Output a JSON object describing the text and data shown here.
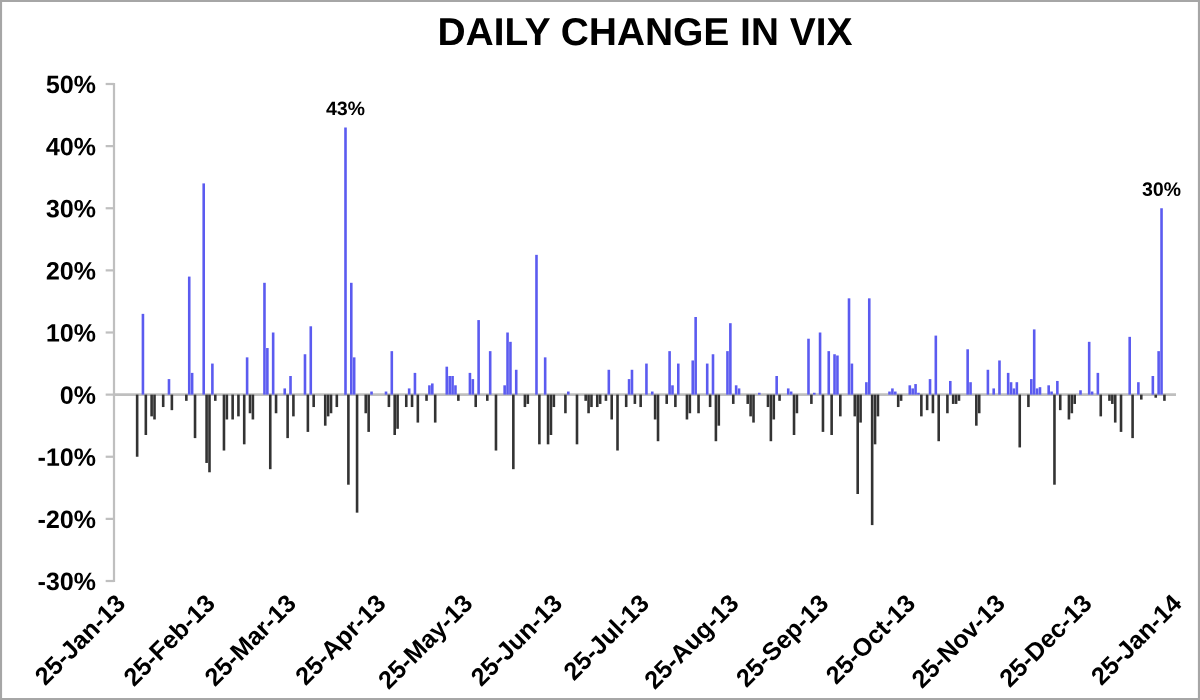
{
  "chart_data": {
    "type": "bar",
    "title": "DAILY CHANGE IN VIX",
    "xlim": [
      "2013-01-25",
      "2014-01-27"
    ],
    "xticks": [
      {
        "value": "2013-01-25",
        "label": "25-Jan-13"
      },
      {
        "value": "2013-02-25",
        "label": "25-Feb-13"
      },
      {
        "value": "2013-03-25",
        "label": "25-Mar-13"
      },
      {
        "value": "2013-04-25",
        "label": "25-Apr-13"
      },
      {
        "value": "2013-05-25",
        "label": "25-May-13"
      },
      {
        "value": "2013-06-25",
        "label": "25-Jun-13"
      },
      {
        "value": "2013-07-25",
        "label": "25-Jul-13"
      },
      {
        "value": "2013-08-25",
        "label": "25-Aug-13"
      },
      {
        "value": "2013-09-25",
        "label": "25-Sep-13"
      },
      {
        "value": "2013-10-25",
        "label": "25-Oct-13"
      },
      {
        "value": "2013-11-25",
        "label": "25-Nov-13"
      },
      {
        "value": "2013-12-25",
        "label": "25-Dec-13"
      },
      {
        "value": "2014-01-25",
        "label": "25-Jan-14"
      }
    ],
    "ylim": [
      -30,
      50
    ],
    "yticks": [
      {
        "value": -30,
        "label": "-30%"
      },
      {
        "value": -20,
        "label": "-20%"
      },
      {
        "value": -10,
        "label": "-10%"
      },
      {
        "value": 0,
        "label": "0%"
      },
      {
        "value": 10,
        "label": "10%"
      },
      {
        "value": 20,
        "label": "20%"
      },
      {
        "value": 30,
        "label": "30%"
      },
      {
        "value": 40,
        "label": "40%"
      },
      {
        "value": 50,
        "label": "50%"
      }
    ],
    "grid": false,
    "legend": false,
    "ref_lines": [
      {
        "axis": "y",
        "value": 0,
        "color": "#bfbfbf"
      }
    ],
    "annotations": [
      {
        "text": "43%",
        "x": "2013-04-15",
        "y": 43
      },
      {
        "text": "30%",
        "x": "2014-01-22",
        "y": 30
      }
    ],
    "series": [
      {
        "color": "#5b5bf0",
        "x": [
          "2013-02-04",
          "2013-02-13",
          "2013-02-20",
          "2013-02-21",
          "2013-02-25",
          "2013-02-28",
          "2013-03-12",
          "2013-03-18",
          "2013-03-19",
          "2013-03-21",
          "2013-03-25",
          "2013-03-27",
          "2013-04-01",
          "2013-04-03",
          "2013-04-15",
          "2013-04-17",
          "2013-04-18",
          "2013-04-24",
          "2013-04-29",
          "2013-05-01",
          "2013-05-07",
          "2013-05-09",
          "2013-05-14",
          "2013-05-15",
          "2013-05-20",
          "2013-05-21",
          "2013-05-22",
          "2013-05-23",
          "2013-05-28",
          "2013-05-29",
          "2013-05-31",
          "2013-06-04",
          "2013-06-09",
          "2013-06-10",
          "2013-06-11",
          "2013-06-13",
          "2013-06-20",
          "2013-06-23",
          "2013-07-01",
          "2013-07-15",
          "2013-07-22",
          "2013-07-23",
          "2013-07-28",
          "2013-07-30",
          "2013-08-05",
          "2013-08-06",
          "2013-08-08",
          "2013-08-13",
          "2013-08-14",
          "2013-08-18",
          "2013-08-20",
          "2013-08-25",
          "2013-08-26",
          "2013-08-28",
          "2013-08-29",
          "2013-09-05",
          "2013-09-11",
          "2013-09-15",
          "2013-09-16",
          "2013-09-22",
          "2013-09-24",
          "2013-09-26",
          "2013-09-29",
          "2013-10-01",
          "2013-10-02",
          "2013-10-06",
          "2013-10-07",
          "2013-10-12",
          "2013-10-13",
          "2013-10-20",
          "2013-10-21",
          "2013-10-22",
          "2013-10-27",
          "2013-10-28",
          "2013-10-29",
          "2013-10-30",
          "2013-11-03",
          "2013-11-05",
          "2013-11-10",
          "2013-11-16",
          "2013-11-17",
          "2013-11-23",
          "2013-11-25",
          "2013-11-27",
          "2013-11-30",
          "2013-12-01",
          "2013-12-02",
          "2013-12-03",
          "2013-12-08",
          "2013-12-09",
          "2013-12-10",
          "2013-12-11",
          "2013-12-14",
          "2013-12-15",
          "2013-12-17",
          "2013-12-25",
          "2013-12-28",
          "2013-12-29",
          "2013-12-31",
          "2014-01-11",
          "2014-01-14",
          "2014-01-19",
          "2014-01-21",
          "2014-01-22"
        ],
        "values": [
          13,
          2.5,
          19,
          3.5,
          34,
          5,
          6,
          18,
          7.5,
          10,
          1,
          3,
          6.5,
          11,
          43,
          18,
          6,
          0.5,
          0.5,
          7,
          1,
          3.5,
          1.5,
          1.8,
          4.5,
          3,
          3,
          1.5,
          3.5,
          2.5,
          12,
          7,
          1.5,
          10,
          8.5,
          4,
          22.5,
          6,
          0.5,
          4,
          2.5,
          4,
          5,
          0.5,
          7,
          1.5,
          5,
          5.5,
          12.5,
          5,
          6.5,
          7,
          11.5,
          1.5,
          1,
          0.3,
          3,
          1,
          0.5,
          9,
          0.3,
          10,
          7,
          6.5,
          6.3,
          15.5,
          5,
          2,
          15.5,
          0.5,
          1,
          0.5,
          1.5,
          1,
          1.7,
          0.3,
          2.5,
          9.5,
          2.2,
          7.3,
          2,
          4,
          1,
          5.5,
          3.5,
          2,
          1,
          2,
          2.5,
          10.5,
          1,
          1.2,
          1.5,
          0.5,
          2.2,
          0.7,
          8.5,
          0.5,
          3.5,
          9.3,
          2,
          3,
          7,
          30
        ]
      },
      {
        "color": "#333333",
        "x": [
          "2013-02-02",
          "2013-02-05",
          "2013-02-07",
          "2013-02-08",
          "2013-02-11",
          "2013-02-14",
          "2013-02-19",
          "2013-02-22",
          "2013-02-26",
          "2013-02-27",
          "2013-03-01",
          "2013-03-04",
          "2013-03-05",
          "2013-03-07",
          "2013-03-09",
          "2013-03-11",
          "2013-03-13",
          "2013-03-14",
          "2013-03-20",
          "2013-03-22",
          "2013-03-26",
          "2013-03-28",
          "2013-04-02",
          "2013-04-04",
          "2013-04-08",
          "2013-04-09",
          "2013-04-10",
          "2013-04-12",
          "2013-04-16",
          "2013-04-19",
          "2013-04-22",
          "2013-04-23",
          "2013-04-30",
          "2013-05-02",
          "2013-05-03",
          "2013-05-06",
          "2013-05-08",
          "2013-05-10",
          "2013-05-13",
          "2013-05-16",
          "2013-05-24",
          "2013-05-30",
          "2013-06-03",
          "2013-06-06",
          "2013-06-12",
          "2013-06-16",
          "2013-06-17",
          "2013-06-21",
          "2013-06-24",
          "2013-06-25",
          "2013-06-26",
          "2013-06-30",
          "2013-07-04",
          "2013-07-07",
          "2013-07-08",
          "2013-07-09",
          "2013-07-11",
          "2013-07-12",
          "2013-07-14",
          "2013-07-16",
          "2013-07-18",
          "2013-07-21",
          "2013-07-24",
          "2013-07-26",
          "2013-07-31",
          "2013-08-01",
          "2013-08-04",
          "2013-08-07",
          "2013-08-11",
          "2013-08-12",
          "2013-08-15",
          "2013-08-19",
          "2013-08-21",
          "2013-08-22",
          "2013-08-27",
          "2013-09-01",
          "2013-09-02",
          "2013-09-03",
          "2013-09-08",
          "2013-09-09",
          "2013-09-10",
          "2013-09-12",
          "2013-09-17",
          "2013-09-18",
          "2013-09-23",
          "2013-09-27",
          "2013-09-30",
          "2013-10-03",
          "2013-10-08",
          "2013-10-09",
          "2013-10-10",
          "2013-10-14",
          "2013-10-15",
          "2013-10-16",
          "2013-10-23",
          "2013-10-24",
          "2013-10-31",
          "2013-11-02",
          "2013-11-04",
          "2013-11-06",
          "2013-11-09",
          "2013-11-11",
          "2013-11-12",
          "2013-11-13",
          "2013-11-19",
          "2013-11-20",
          "2013-12-04",
          "2013-12-07",
          "2013-12-16",
          "2013-12-18",
          "2013-12-21",
          "2013-12-22",
          "2013-12-23",
          "2014-01-01",
          "2014-01-04",
          "2014-01-05",
          "2014-01-06",
          "2014-01-08",
          "2014-01-12",
          "2014-01-15",
          "2014-01-20",
          "2014-01-23"
        ],
        "values": [
          -10,
          -6.5,
          -3.5,
          -4,
          -2,
          -2.5,
          -1,
          -7,
          -11,
          -12.5,
          -1,
          -9,
          -4,
          -4,
          -3.5,
          -8,
          -3,
          -4,
          -12,
          -3,
          -7,
          -3.5,
          -6,
          -2,
          -5,
          -3.5,
          -3,
          -2,
          -14.5,
          -19,
          -3,
          -6,
          -2,
          -6.5,
          -5.5,
          -2,
          -2,
          -4.5,
          -1,
          -4.5,
          -1,
          -2,
          -1,
          -9,
          -12,
          -2,
          -1.5,
          -8,
          -8,
          -6.5,
          -2,
          -3,
          -8,
          -1,
          -3,
          -2,
          -2,
          -1.5,
          -1,
          -4,
          -9,
          -2,
          -1.5,
          -2,
          -4,
          -7.5,
          -1.5,
          -2,
          -4,
          -3,
          -3,
          -2,
          -7.5,
          -5,
          -1.5,
          -1.5,
          -3.5,
          -4.5,
          -2,
          -7.5,
          -4,
          -1,
          -6.5,
          -3,
          -1.5,
          -6,
          -6.5,
          -3.5,
          -3.5,
          -16,
          -4.5,
          -21,
          -8,
          -3.5,
          -2,
          -1,
          -3.5,
          -2.5,
          -3,
          -7.5,
          -3,
          -1.5,
          -1.5,
          -1,
          -5,
          -3,
          -8.5,
          -2,
          -14.5,
          -2.5,
          -4,
          -3,
          -1.5,
          -3.5,
          -1,
          -1.5,
          -4.5,
          -6,
          -7,
          -0.8,
          -0.5,
          -1
        ]
      }
    ]
  }
}
